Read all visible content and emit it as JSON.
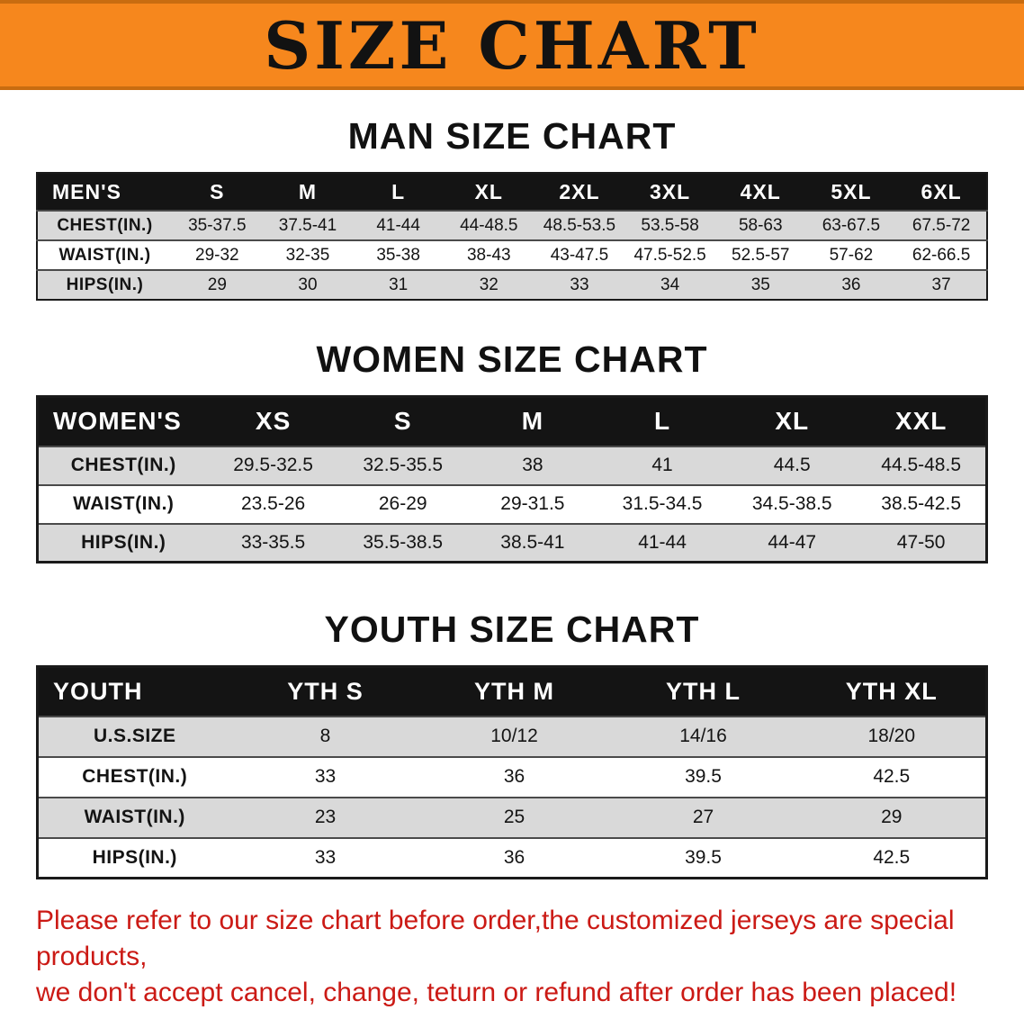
{
  "banner": {
    "title": "SIZE CHART"
  },
  "colors": {
    "banner_bg": "#f6871d",
    "banner_text": "#121212",
    "table_header_bg": "#141414",
    "table_header_text": "#ffffff",
    "row_shade": "#d9d9d9",
    "footer_text": "#cb1a15",
    "title_text": "#111111"
  },
  "sections": [
    {
      "id": "men",
      "title": "MAN SIZE CHART",
      "table": {
        "header": [
          "MEN'S",
          "S",
          "M",
          "L",
          "XL",
          "2XL",
          "3XL",
          "4XL",
          "5XL",
          "6XL"
        ],
        "rows": [
          [
            "CHEST(IN.)",
            "35-37.5",
            "37.5-41",
            "41-44",
            "44-48.5",
            "48.5-53.5",
            "53.5-58",
            "58-63",
            "63-67.5",
            "67.5-72"
          ],
          [
            "WAIST(IN.)",
            "29-32",
            "32-35",
            "35-38",
            "38-43",
            "43-47.5",
            "47.5-52.5",
            "52.5-57",
            "57-62",
            "62-66.5"
          ],
          [
            "HIPS(IN.)",
            "29",
            "30",
            "31",
            "32",
            "33",
            "34",
            "35",
            "36",
            "37"
          ]
        ]
      }
    },
    {
      "id": "women",
      "title": "WOMEN SIZE CHART",
      "table": {
        "header": [
          "WOMEN'S",
          "XS",
          "S",
          "M",
          "L",
          "XL",
          "XXL"
        ],
        "rows": [
          [
            "CHEST(IN.)",
            "29.5-32.5",
            "32.5-35.5",
            "38",
            "41",
            "44.5",
            "44.5-48.5"
          ],
          [
            "WAIST(IN.)",
            "23.5-26",
            "26-29",
            "29-31.5",
            "31.5-34.5",
            "34.5-38.5",
            "38.5-42.5"
          ],
          [
            "HIPS(IN.)",
            "33-35.5",
            "35.5-38.5",
            "38.5-41",
            "41-44",
            "44-47",
            "47-50"
          ]
        ]
      }
    },
    {
      "id": "youth",
      "title": "YOUTH SIZE CHART",
      "table": {
        "header": [
          "YOUTH",
          "YTH S",
          "YTH M",
          "YTH L",
          "YTH XL"
        ],
        "rows": [
          [
            "U.S.SIZE",
            "8",
            "10/12",
            "14/16",
            "18/20"
          ],
          [
            "CHEST(IN.)",
            "33",
            "36",
            "39.5",
            "42.5"
          ],
          [
            "WAIST(IN.)",
            "23",
            "25",
            "27",
            "29"
          ],
          [
            "HIPS(IN.)",
            "33",
            "36",
            "39.5",
            "42.5"
          ]
        ]
      }
    }
  ],
  "footer": {
    "line1": "Please refer to our size chart before order,the customized jerseys are special products,",
    "line2": "we don't accept cancel, change, teturn or refund after order has been placed!"
  }
}
